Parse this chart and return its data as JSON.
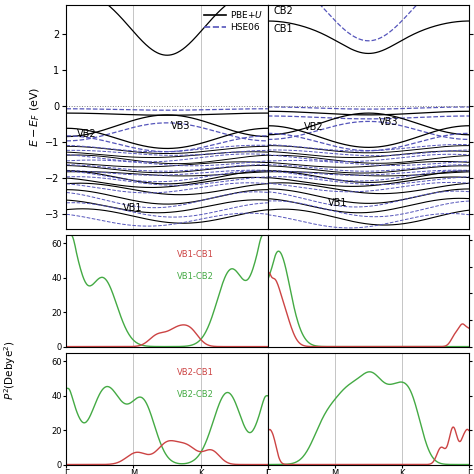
{
  "band_color_solid": "#000000",
  "band_color_dashed": "#5555bb",
  "vb1_cb1_color": "#cc4444",
  "vb1_cb2_color": "#44aa44",
  "background_color": "#ffffff",
  "grid_color": "#bbbbbb",
  "ylim_band": [
    -3.4,
    2.8
  ],
  "kpoints": [
    0.0,
    0.333,
    0.667,
    1.0
  ],
  "kpoint_labels": [
    "Γ",
    "M",
    "K",
    "Γ"
  ]
}
